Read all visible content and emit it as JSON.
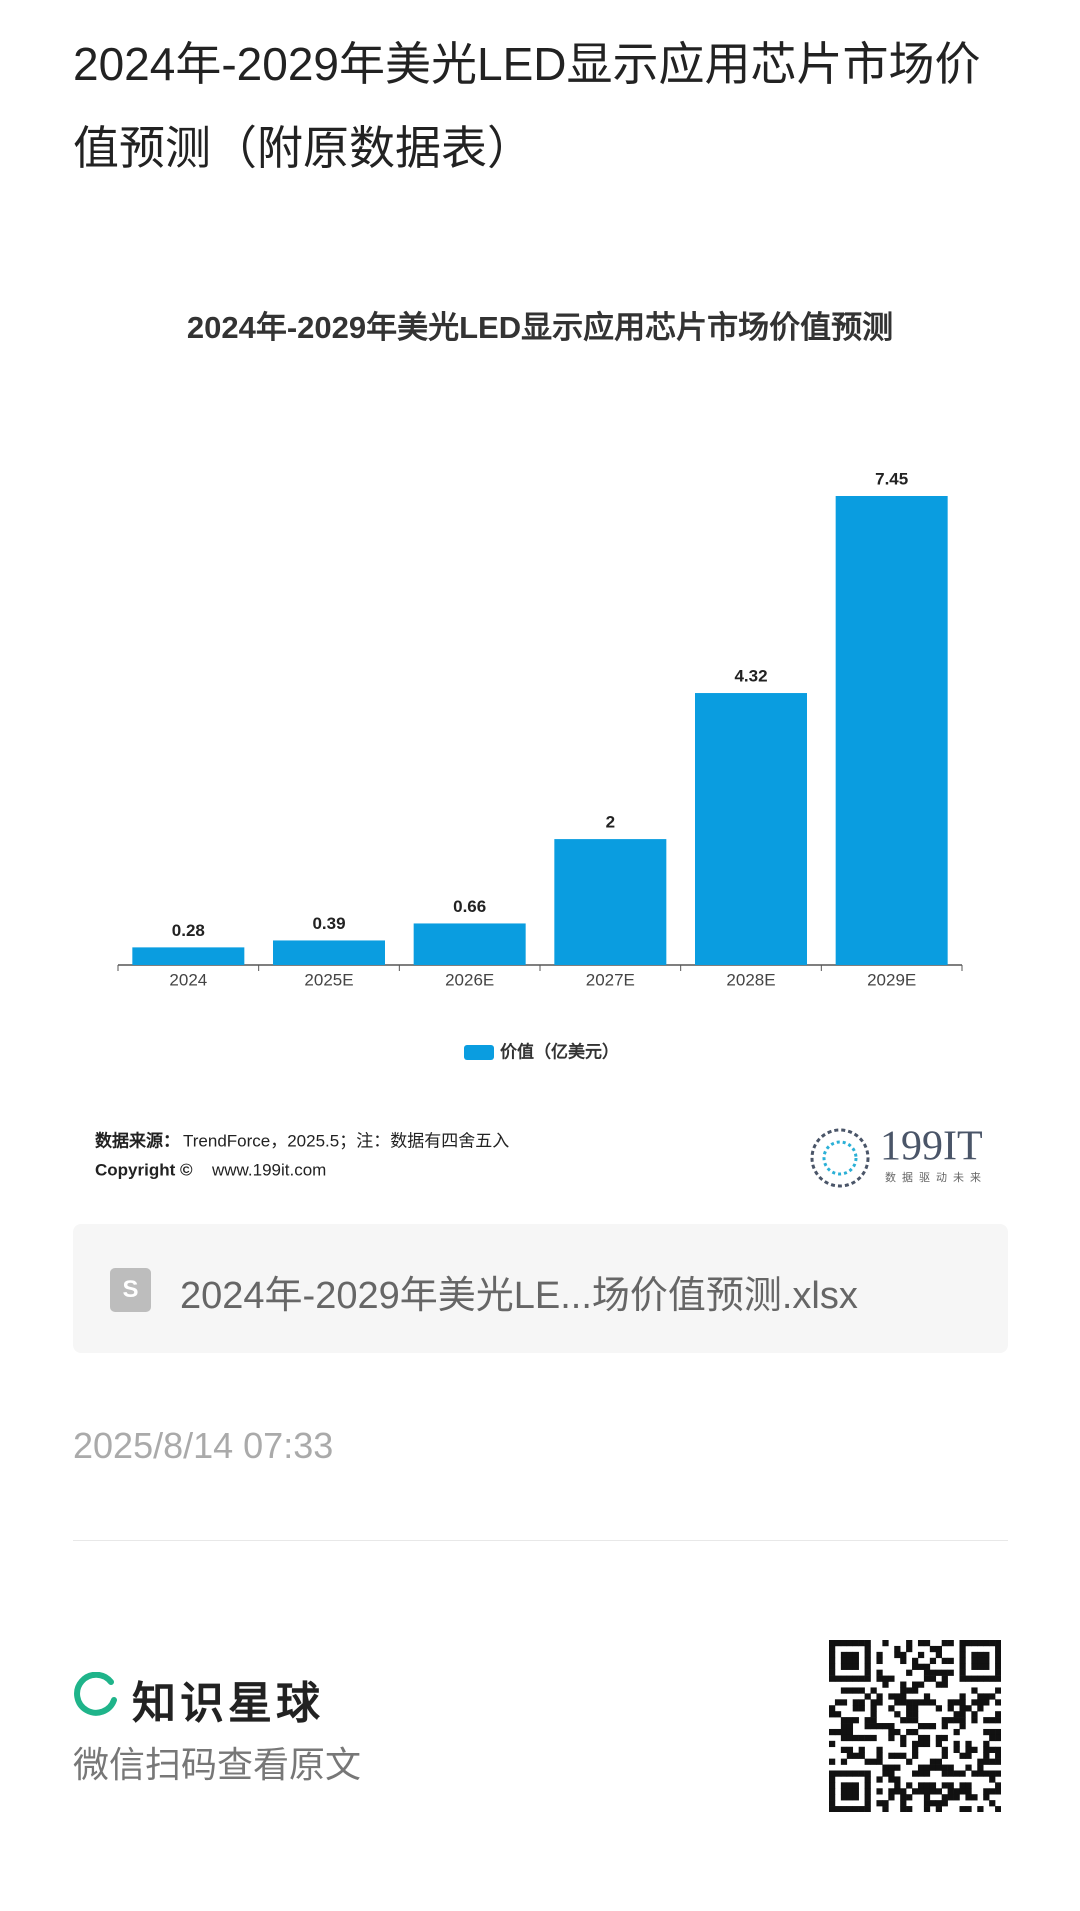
{
  "page": {
    "title": "2024年-2029年美光LED显示应用芯片市场价值预测（附原数据表）"
  },
  "chart_data": {
    "type": "bar",
    "title": "2024年-2029年美光LED显示应用芯片市场价值预测",
    "categories": [
      "2024",
      "2025E",
      "2026E",
      "2027E",
      "2028E",
      "2029E"
    ],
    "series": [
      {
        "name": "价值（亿美元）",
        "color": "#0a9de0",
        "values": [
          0.28,
          0.39,
          0.66,
          2,
          4.32,
          7.45
        ]
      }
    ],
    "grid": false
  },
  "source": {
    "label": "数据来源：",
    "text": "TrendForce，2025.5；注：数据有四舍五入",
    "copyright_label": "Copyright ©",
    "copyright_text": "www.199it.com"
  },
  "logo": {
    "text": "199IT",
    "slogan": "数据驱动未来"
  },
  "attachment": {
    "file_name": "2024年-2029年美光LE...场价值预测.xlsx"
  },
  "date": "2025/8/14 07:33",
  "footer": {
    "brand": "知识星球",
    "hint": "微信扫码查看原文"
  }
}
